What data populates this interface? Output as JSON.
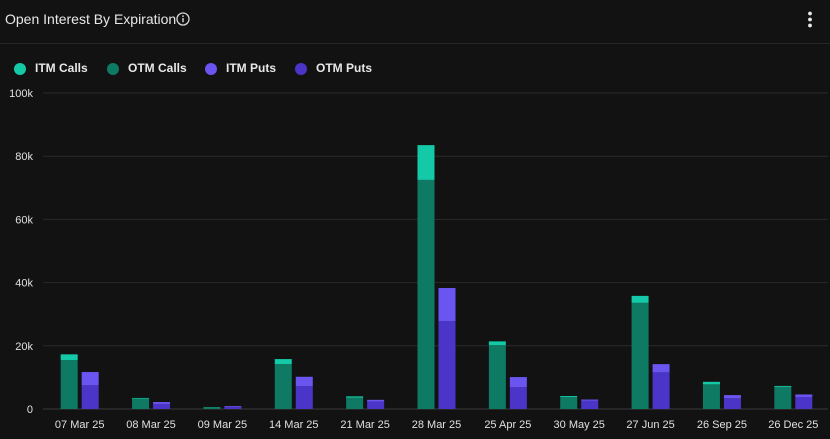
{
  "header": {
    "title": "Open Interest By Expiration",
    "info_icon": "info-icon",
    "menu_icon": "kebab-menu-icon"
  },
  "colors": {
    "background": "#121212",
    "grid": "#2a2a2a",
    "itm_calls": "#14c9a7",
    "otm_calls": "#0f7a64",
    "itm_puts": "#6a55f0",
    "otm_puts": "#4a35c8"
  },
  "chart_data": {
    "type": "bar",
    "title": "Open Interest By Expiration",
    "stacked": true,
    "categories": [
      "07 Mar 25",
      "08 Mar 25",
      "09 Mar 25",
      "14 Mar 25",
      "21 Mar 25",
      "28 Mar 25",
      "25 Apr 25",
      "30 May 25",
      "27 Jun 25",
      "26 Sep 25",
      "26 Dec 25"
    ],
    "stacks": {
      "calls": [
        "OTM Calls",
        "ITM Calls"
      ],
      "puts": [
        "OTM Puts",
        "ITM Puts"
      ]
    },
    "series": [
      {
        "name": "ITM Calls",
        "stack": "calls",
        "color": "#14c9a7",
        "values": [
          1800,
          200,
          100,
          1600,
          400,
          11000,
          1200,
          300,
          2200,
          800,
          300
        ]
      },
      {
        "name": "OTM Calls",
        "stack": "calls",
        "color": "#0f7a64",
        "values": [
          15500,
          3300,
          500,
          14200,
          3600,
          72500,
          20200,
          3800,
          33600,
          7800,
          7000
        ]
      },
      {
        "name": "ITM Puts",
        "stack": "puts",
        "color": "#6a55f0",
        "values": [
          4200,
          600,
          300,
          3000,
          500,
          10500,
          3200,
          400,
          2600,
          1000,
          800
        ]
      },
      {
        "name": "OTM Puts",
        "stack": "puts",
        "color": "#4a35c8",
        "values": [
          7500,
          1600,
          600,
          7200,
          2400,
          27800,
          6900,
          2600,
          11600,
          3400,
          3800
        ]
      }
    ],
    "yticks": [
      "0",
      "20k",
      "40k",
      "60k",
      "80k",
      "100k"
    ],
    "ytick_values": [
      0,
      20000,
      40000,
      60000,
      80000,
      100000
    ],
    "ylim": [
      0,
      100000
    ],
    "xlabel": "",
    "ylabel": "",
    "grid": true,
    "legend": "top-left"
  }
}
